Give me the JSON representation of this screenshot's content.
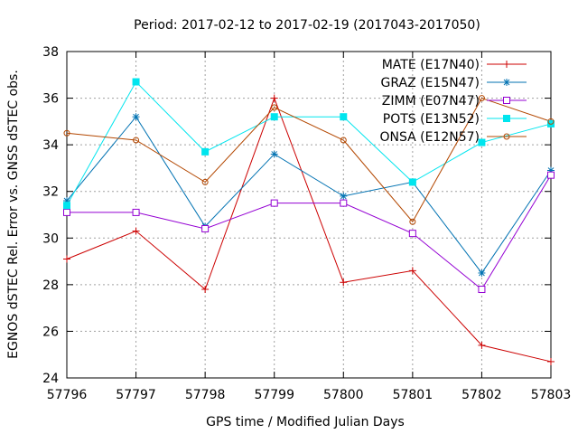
{
  "chart_data": {
    "type": "line",
    "title": "Period: 2017-02-12 to 2017-02-19 (2017043-2017050)",
    "xlabel": "GPS time / Modified Julian Days",
    "ylabel": "EGNOS dSTEC Rel. Error vs. GNSS dSTEC obs.",
    "x": [
      57796,
      57797,
      57798,
      57799,
      57800,
      57801,
      57802,
      57803
    ],
    "xlim": [
      57796,
      57803
    ],
    "ylim": [
      24,
      38
    ],
    "xticks": [
      "57796",
      "57797",
      "57798",
      "57799",
      "57800",
      "57801",
      "57802",
      "57803"
    ],
    "yticks": [
      "24",
      "26",
      "28",
      "30",
      "32",
      "34",
      "36",
      "38"
    ],
    "grid": true,
    "legend_position": "top-right",
    "series": [
      {
        "name": "MATE (E17N40)",
        "color": "#cc0000",
        "marker": "plus",
        "values": [
          29.1,
          30.3,
          27.8,
          36.0,
          28.1,
          28.6,
          25.4,
          24.7
        ]
      },
      {
        "name": "GRAZ (E15N47)",
        "color": "#0072b2",
        "marker": "star",
        "values": [
          31.6,
          35.2,
          30.5,
          33.6,
          31.8,
          32.4,
          28.5,
          32.9
        ]
      },
      {
        "name": "ZIMM (E07N47)",
        "color": "#9400d3",
        "marker": "square-open",
        "values": [
          31.1,
          31.1,
          30.4,
          31.5,
          31.5,
          30.2,
          27.8,
          32.7
        ]
      },
      {
        "name": "POTS (E13N52)",
        "color": "#00e5ee",
        "marker": "square-filled",
        "values": [
          31.4,
          36.7,
          33.7,
          35.2,
          35.2,
          32.4,
          34.1,
          34.9
        ]
      },
      {
        "name": "ONSA (E12N57)",
        "color": "#b34700",
        "marker": "circle-open",
        "values": [
          34.5,
          34.2,
          32.4,
          35.6,
          34.2,
          30.7,
          36.0,
          35.0
        ]
      }
    ]
  }
}
